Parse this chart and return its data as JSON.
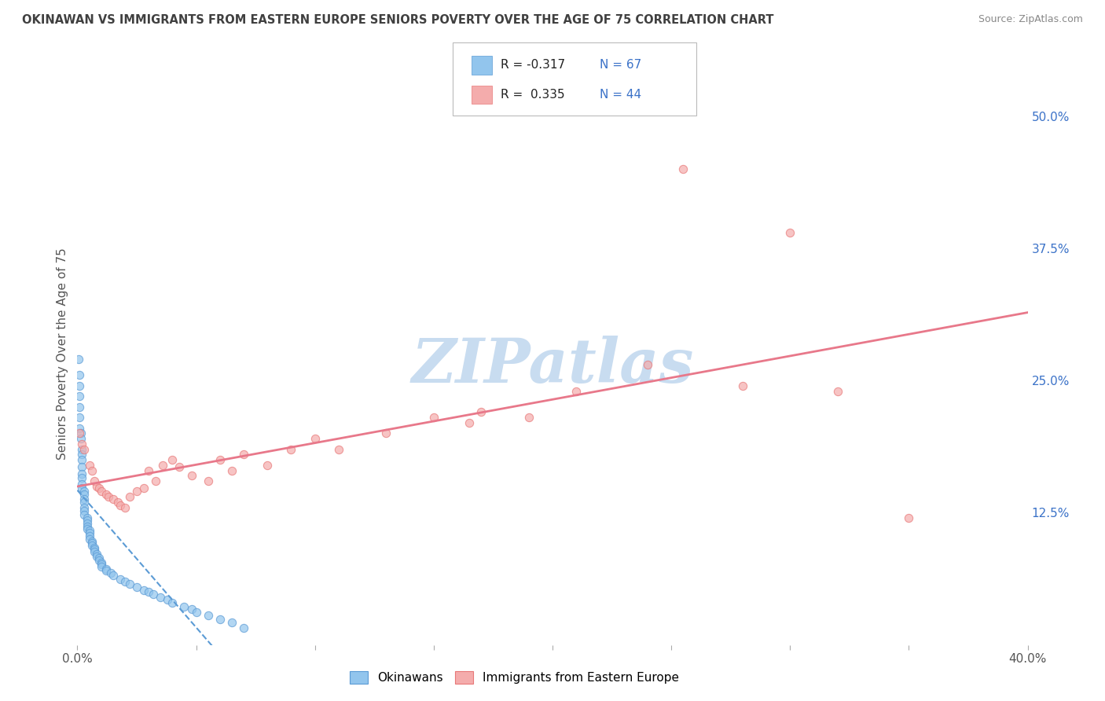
{
  "title": "OKINAWAN VS IMMIGRANTS FROM EASTERN EUROPE SENIORS POVERTY OVER THE AGE OF 75 CORRELATION CHART",
  "source": "Source: ZipAtlas.com",
  "ylabel": "Seniors Poverty Over the Age of 75",
  "xlim": [
    0.0,
    0.4
  ],
  "ylim": [
    0.0,
    0.55
  ],
  "ytick_vals": [
    0.0,
    0.125,
    0.25,
    0.375,
    0.5
  ],
  "ytick_labels": [
    "",
    "12.5%",
    "25.0%",
    "37.5%",
    "50.0%"
  ],
  "xtick_vals": [
    0.0,
    0.05,
    0.1,
    0.15,
    0.2,
    0.25,
    0.3,
    0.35,
    0.4
  ],
  "xtick_labels": [
    "0.0%",
    "",
    "",
    "",
    "",
    "",
    "",
    "",
    "40.0%"
  ],
  "legend_r1": "-0.317",
  "legend_n1": "67",
  "legend_r2": "0.335",
  "legend_n2": "44",
  "color_blue": "#92C5ED",
  "color_blue_edge": "#5B9BD5",
  "color_pink": "#F4ACAC",
  "color_pink_edge": "#E87878",
  "color_blue_line": "#5B9BD5",
  "color_pink_line": "#E8788A",
  "color_blue_text": "#3B72C8",
  "title_color": "#404040",
  "source_color": "#888888",
  "background_color": "#FFFFFF",
  "grid_color": "#C8C8C8",
  "watermark_color": "#C8DCF0",
  "okinawan_x": [
    0.0005,
    0.001,
    0.001,
    0.001,
    0.001,
    0.001,
    0.001,
    0.0015,
    0.0015,
    0.002,
    0.002,
    0.002,
    0.002,
    0.002,
    0.002,
    0.002,
    0.002,
    0.003,
    0.003,
    0.003,
    0.003,
    0.003,
    0.003,
    0.003,
    0.004,
    0.004,
    0.004,
    0.004,
    0.004,
    0.005,
    0.005,
    0.005,
    0.005,
    0.006,
    0.006,
    0.006,
    0.007,
    0.007,
    0.007,
    0.008,
    0.008,
    0.009,
    0.009,
    0.01,
    0.01,
    0.01,
    0.012,
    0.012,
    0.014,
    0.015,
    0.018,
    0.02,
    0.022,
    0.025,
    0.028,
    0.03,
    0.032,
    0.035,
    0.038,
    0.04,
    0.045,
    0.048,
    0.05,
    0.055,
    0.06,
    0.065,
    0.07
  ],
  "okinawan_y": [
    0.27,
    0.255,
    0.245,
    0.235,
    0.225,
    0.215,
    0.205,
    0.2,
    0.195,
    0.185,
    0.18,
    0.175,
    0.168,
    0.162,
    0.158,
    0.152,
    0.148,
    0.145,
    0.142,
    0.138,
    0.135,
    0.13,
    0.127,
    0.123,
    0.12,
    0.118,
    0.115,
    0.112,
    0.11,
    0.108,
    0.106,
    0.103,
    0.1,
    0.098,
    0.096,
    0.094,
    0.092,
    0.09,
    0.088,
    0.086,
    0.084,
    0.082,
    0.08,
    0.078,
    0.076,
    0.074,
    0.072,
    0.07,
    0.068,
    0.066,
    0.062,
    0.06,
    0.058,
    0.055,
    0.052,
    0.05,
    0.048,
    0.045,
    0.043,
    0.04,
    0.036,
    0.034,
    0.031,
    0.028,
    0.024,
    0.021,
    0.016
  ],
  "eastern_europe_x": [
    0.001,
    0.002,
    0.003,
    0.005,
    0.006,
    0.007,
    0.008,
    0.009,
    0.01,
    0.012,
    0.013,
    0.015,
    0.017,
    0.018,
    0.02,
    0.022,
    0.025,
    0.028,
    0.03,
    0.033,
    0.036,
    0.04,
    0.043,
    0.048,
    0.055,
    0.06,
    0.065,
    0.07,
    0.08,
    0.09,
    0.1,
    0.11,
    0.13,
    0.15,
    0.17,
    0.19,
    0.21,
    0.24,
    0.28,
    0.32,
    0.35,
    0.255,
    0.3,
    0.165
  ],
  "eastern_europe_y": [
    0.2,
    0.19,
    0.185,
    0.17,
    0.165,
    0.155,
    0.15,
    0.148,
    0.145,
    0.142,
    0.14,
    0.138,
    0.135,
    0.132,
    0.13,
    0.14,
    0.145,
    0.148,
    0.165,
    0.155,
    0.17,
    0.175,
    0.168,
    0.16,
    0.155,
    0.175,
    0.165,
    0.18,
    0.17,
    0.185,
    0.195,
    0.185,
    0.2,
    0.215,
    0.22,
    0.215,
    0.24,
    0.265,
    0.245,
    0.24,
    0.12,
    0.45,
    0.39,
    0.21
  ]
}
